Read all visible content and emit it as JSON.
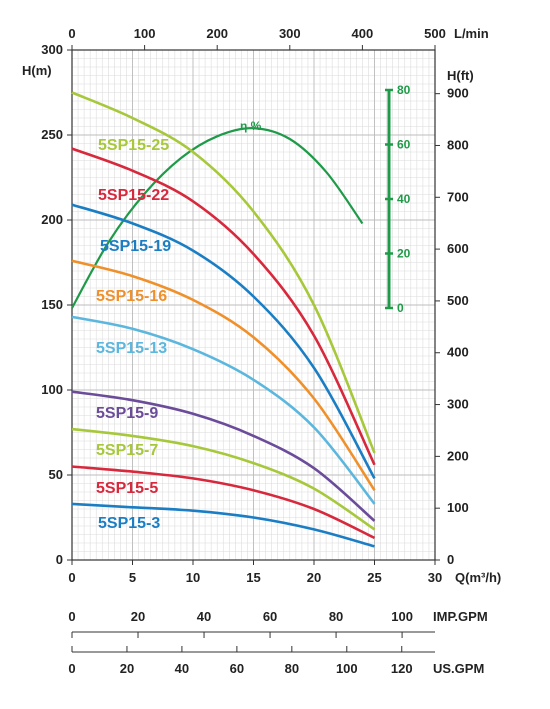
{
  "chart_data": {
    "type": "line",
    "title": "",
    "axes": {
      "q_m3h": {
        "label": "Q(m³/h)",
        "range": [
          0,
          30
        ],
        "ticks": [
          0,
          5,
          10,
          15,
          20,
          25,
          30
        ]
      },
      "q_lmin": {
        "label": "L/min",
        "range": [
          0,
          500
        ],
        "ticks": [
          0,
          100,
          200,
          300,
          400,
          500
        ]
      },
      "imp_gpm": {
        "label": "IMP.GPM",
        "ticks": [
          0,
          20,
          40,
          60,
          80,
          100
        ]
      },
      "us_gpm": {
        "label": "US.GPM",
        "ticks": [
          0,
          20,
          40,
          60,
          80,
          100,
          120
        ]
      },
      "h_m": {
        "label": "H(m)",
        "range": [
          0,
          300
        ],
        "ticks": [
          0,
          50,
          100,
          150,
          200,
          250,
          300
        ]
      },
      "h_ft": {
        "label": "H(ft)",
        "ticks": [
          0,
          100,
          200,
          300,
          400,
          500,
          600,
          700,
          800,
          900
        ]
      },
      "efficiency": {
        "label": "η %",
        "ticks": [
          0,
          20,
          40,
          60,
          80
        ]
      }
    },
    "grid": true,
    "series": [
      {
        "name": "5SP15-25",
        "color": "#a6c83a",
        "x": [
          0,
          5,
          10,
          15,
          20,
          25
        ],
        "y": [
          275,
          260,
          240,
          205,
          150,
          63
        ]
      },
      {
        "name": "5SP15-22",
        "color": "#d8283c",
        "x": [
          0,
          5,
          10,
          15,
          20,
          25
        ],
        "y": [
          242,
          229,
          211,
          180,
          132,
          56
        ]
      },
      {
        "name": "5SP15-19",
        "color": "#1b7ec4",
        "x": [
          0,
          5,
          10,
          15,
          20,
          25
        ],
        "y": [
          209,
          198,
          182,
          155,
          113,
          48
        ]
      },
      {
        "name": "5SP15-16",
        "color": "#f0902a",
        "x": [
          0,
          5,
          10,
          15,
          20,
          25
        ],
        "y": [
          176,
          167,
          153,
          131,
          95,
          41
        ]
      },
      {
        "name": "5SP15-13",
        "color": "#5bb7de",
        "x": [
          0,
          5,
          10,
          15,
          20,
          25
        ],
        "y": [
          143,
          136,
          124,
          106,
          78,
          33
        ]
      },
      {
        "name": "5SP15-9",
        "color": "#6b4c9a",
        "x": [
          0,
          5,
          10,
          15,
          20,
          25
        ],
        "y": [
          99,
          94,
          86,
          73,
          54,
          23
        ]
      },
      {
        "name": "5SP15-7",
        "color": "#a6c83a",
        "x": [
          0,
          5,
          10,
          15,
          20,
          25
        ],
        "y": [
          77,
          73,
          67,
          57,
          42,
          18
        ]
      },
      {
        "name": "5SP15-5",
        "color": "#d8283c",
        "x": [
          0,
          5,
          10,
          15,
          20,
          25
        ],
        "y": [
          55,
          52,
          48,
          41,
          30,
          13
        ]
      },
      {
        "name": "5SP15-3",
        "color": "#1b7ec4",
        "x": [
          0,
          5,
          10,
          15,
          20,
          25
        ],
        "y": [
          33,
          31,
          29,
          25,
          18,
          8
        ]
      }
    ],
    "efficiency_curve": {
      "name": "η %",
      "color": "#1e9a48",
      "x": [
        0,
        3,
        6,
        9,
        12,
        15,
        18,
        21,
        24
      ],
      "y": [
        0,
        24,
        42,
        55,
        63,
        66,
        62,
        50,
        31
      ]
    }
  }
}
